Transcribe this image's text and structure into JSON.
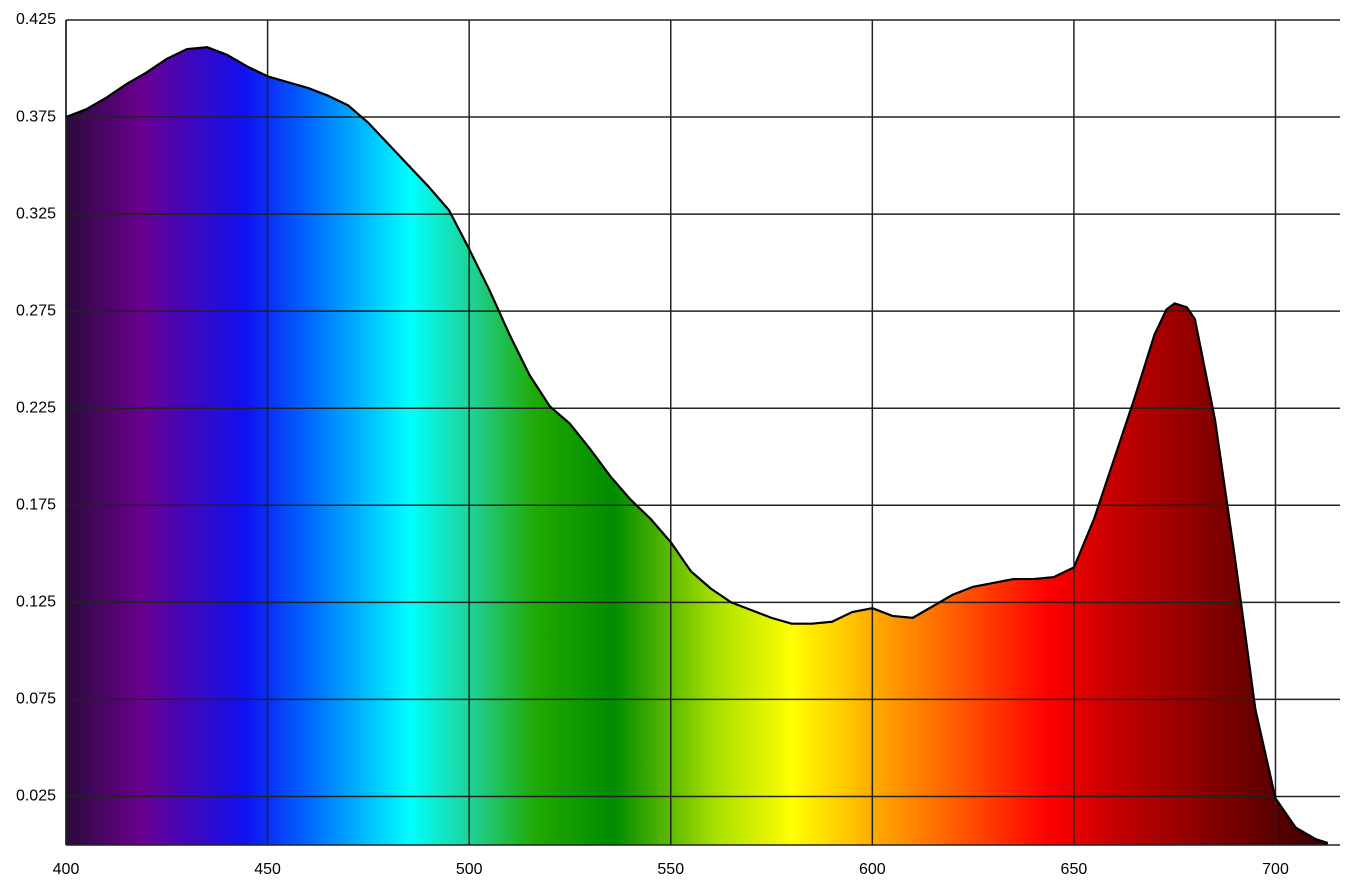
{
  "chart_data": {
    "type": "area",
    "x": [
      400,
      405,
      410,
      415,
      420,
      425,
      430,
      435,
      440,
      445,
      450,
      455,
      460,
      465,
      470,
      475,
      480,
      485,
      490,
      495,
      500,
      505,
      510,
      515,
      520,
      525,
      530,
      535,
      540,
      545,
      550,
      555,
      560,
      565,
      570,
      575,
      580,
      585,
      590,
      595,
      600,
      605,
      610,
      615,
      620,
      625,
      630,
      635,
      640,
      645,
      650,
      655,
      660,
      665,
      670,
      673,
      675,
      678,
      680,
      685,
      690,
      695,
      700,
      705,
      710,
      713
    ],
    "values": [
      0.375,
      0.379,
      0.385,
      0.392,
      0.398,
      0.405,
      0.41,
      0.411,
      0.407,
      0.401,
      0.396,
      0.393,
      0.39,
      0.386,
      0.381,
      0.372,
      0.361,
      0.35,
      0.339,
      0.327,
      0.307,
      0.286,
      0.263,
      0.242,
      0.226,
      0.217,
      0.204,
      0.19,
      0.178,
      0.168,
      0.156,
      0.141,
      0.132,
      0.125,
      0.121,
      0.117,
      0.114,
      0.114,
      0.115,
      0.12,
      0.122,
      0.118,
      0.117,
      0.123,
      0.129,
      0.133,
      0.135,
      0.137,
      0.137,
      0.138,
      0.143,
      0.168,
      0.199,
      0.23,
      0.263,
      0.276,
      0.279,
      0.277,
      0.271,
      0.219,
      0.147,
      0.07,
      0.024,
      0.009,
      0.003,
      0.001
    ],
    "color": "#000000",
    "xlim": [
      400,
      716
    ],
    "ylim": [
      0,
      0.425
    ],
    "xticks": [
      400,
      450,
      500,
      550,
      600,
      650,
      700
    ],
    "yticks": [
      0.025,
      0.075,
      0.125,
      0.175,
      0.225,
      0.275,
      0.325,
      0.375,
      0.425
    ],
    "grid": true
  }
}
